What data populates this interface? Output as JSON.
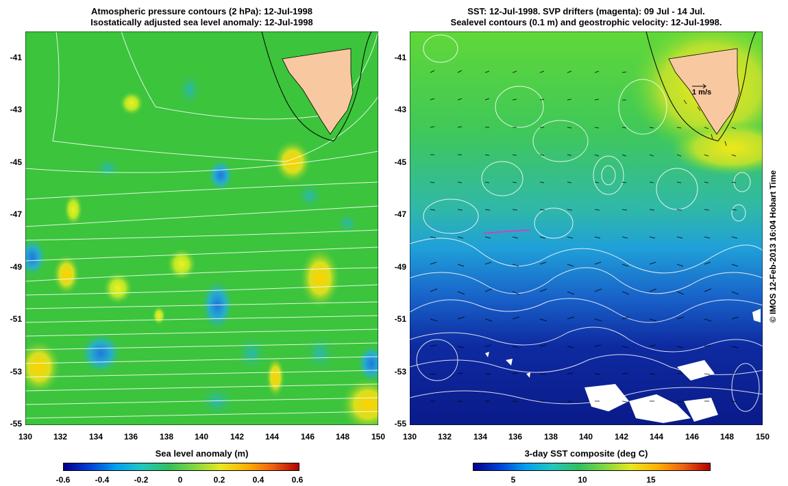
{
  "left_panel": {
    "title_line1": "Atmospheric pressure contours (2 hPa): 12-Jul-1998",
    "title_line2": "Isostatically adjusted sea level anomaly: 12-Jul-1998",
    "colorbar_title": "Sea level anomaly (m)",
    "colorbar_ticks": [
      "-0.6",
      "-0.4",
      "-0.2",
      "0",
      "0.2",
      "0.4",
      "0.6"
    ]
  },
  "right_panel": {
    "title_line1": "SST: 12-Jul-1998. SVP drifters (magenta): 09 Jul - 14 Jul.",
    "title_line2": "Sealevel contours (0.1 m) and geostrophic velocity: 12-Jul-1998.",
    "colorbar_title": "3-day SST composite (deg C)",
    "colorbar_ticks": [
      "5",
      "10",
      "15"
    ],
    "velocity_scale_label": "1 m/s"
  },
  "axes": {
    "lat_labels": [
      "-41",
      "-43",
      "-45",
      "-47",
      "-49",
      "-51",
      "-53",
      "-55"
    ],
    "lon_labels": [
      "130",
      "132",
      "134",
      "136",
      "138",
      "140",
      "142",
      "144",
      "146",
      "148",
      "150"
    ]
  },
  "credit": "© IMOS 12-Feb-2013 16:04 Hobart Time",
  "colors": {
    "land": "#f8c8a0",
    "sla_background": "#3cc43c",
    "contour": "#ffffff"
  }
}
